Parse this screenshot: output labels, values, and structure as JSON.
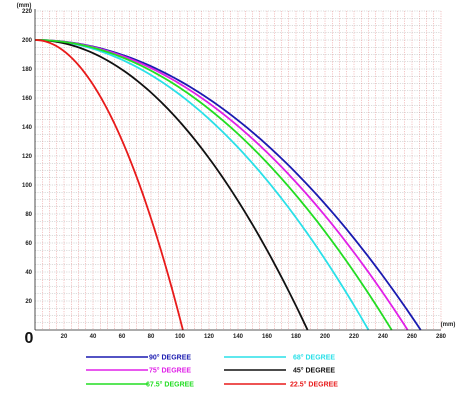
{
  "chart_data": {
    "type": "line",
    "x_unit": "(mm)",
    "y_unit": "(mm)",
    "xlim": [
      0,
      280
    ],
    "ylim": [
      0,
      220
    ],
    "x_ticks": [
      0,
      20,
      40,
      60,
      80,
      100,
      120,
      140,
      160,
      180,
      200,
      220,
      240,
      260,
      280
    ],
    "y_ticks": [
      20,
      40,
      60,
      80,
      100,
      120,
      140,
      160,
      180,
      200,
      220
    ],
    "highlight_y_tick": 200,
    "highlight_color": "#d4009a",
    "minor_grid_step": 5,
    "origin_label": "0",
    "start_height": 200,
    "series": [
      {
        "name": "90° DEGREE",
        "color": "#1a1ab0",
        "end_x": 266
      },
      {
        "name": "68° DEGREE",
        "color": "#2ae0e8",
        "end_x": 230
      },
      {
        "name": "75° DEGREE",
        "color": "#e020e8",
        "end_x": 257
      },
      {
        "name": "45° DEGREE",
        "color": "#111111",
        "end_x": 188
      },
      {
        "name": "67.5° DEGREE",
        "color": "#22dd22",
        "end_x": 246
      },
      {
        "name": "22.5° DEGREE",
        "color": "#e81a1a",
        "end_x": 102
      }
    ],
    "legend": {
      "placement": "bottom",
      "columns": 2
    }
  }
}
